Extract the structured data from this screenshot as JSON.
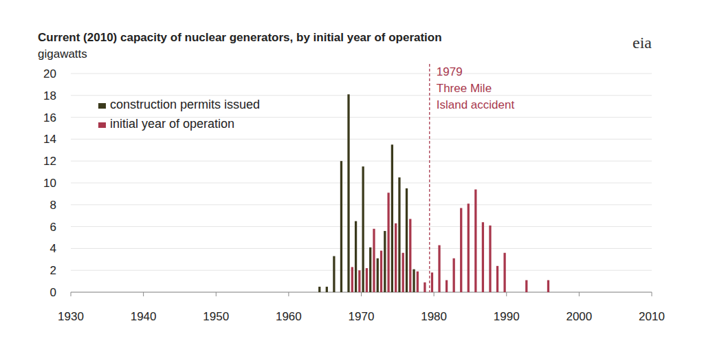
{
  "chart_data": {
    "type": "bar",
    "title": "Current (2010) capacity of nuclear generators, by initial year of operation",
    "y_label": "gigawatts",
    "logo": "eia",
    "x": [
      1964,
      1965,
      1966,
      1967,
      1968,
      1969,
      1970,
      1971,
      1972,
      1973,
      1974,
      1975,
      1976,
      1977,
      1978,
      1979,
      1980,
      1981,
      1982,
      1983,
      1984,
      1985,
      1986,
      1987,
      1988,
      1989,
      1990,
      1991,
      1992,
      1993,
      1994,
      1995
    ],
    "series": [
      {
        "name": "construction permits issued",
        "color": "#3b3a1c",
        "values": [
          0.5,
          0.5,
          3.3,
          12,
          18.1,
          6.5,
          11.5,
          4.1,
          3.1,
          5.6,
          13.5,
          10.5,
          9.5,
          2.1,
          null,
          null,
          null,
          null,
          null,
          null,
          null,
          null,
          null,
          null,
          null,
          null,
          null,
          null,
          null,
          null,
          null,
          null
        ]
      },
      {
        "name": "initial year of operation",
        "color": "#a8374c",
        "values": [
          null,
          null,
          null,
          null,
          2.3,
          2.0,
          2.2,
          5.8,
          3.8,
          9.1,
          6.3,
          3.6,
          6.7,
          1.9,
          0.9,
          1.8,
          4.3,
          1.1,
          3.1,
          7.7,
          8.1,
          9.4,
          6.4,
          6.1,
          2.4,
          3.6,
          null,
          null,
          1.1,
          null,
          null,
          1.1
        ]
      }
    ],
    "xlim": [
      1930,
      2010
    ],
    "xticks": [
      1930,
      1940,
      1950,
      1960,
      1970,
      1980,
      1990,
      2000,
      2010
    ],
    "ylim": [
      0,
      20
    ],
    "yticks": [
      0,
      2,
      4,
      6,
      8,
      10,
      12,
      14,
      16,
      18,
      20
    ],
    "grid": true,
    "legend": "top-left",
    "annotations": [
      {
        "x": 1979.4,
        "lines": [
          "1979",
          "Three Mile",
          "Island accident"
        ],
        "color": "#a8374c"
      }
    ]
  }
}
